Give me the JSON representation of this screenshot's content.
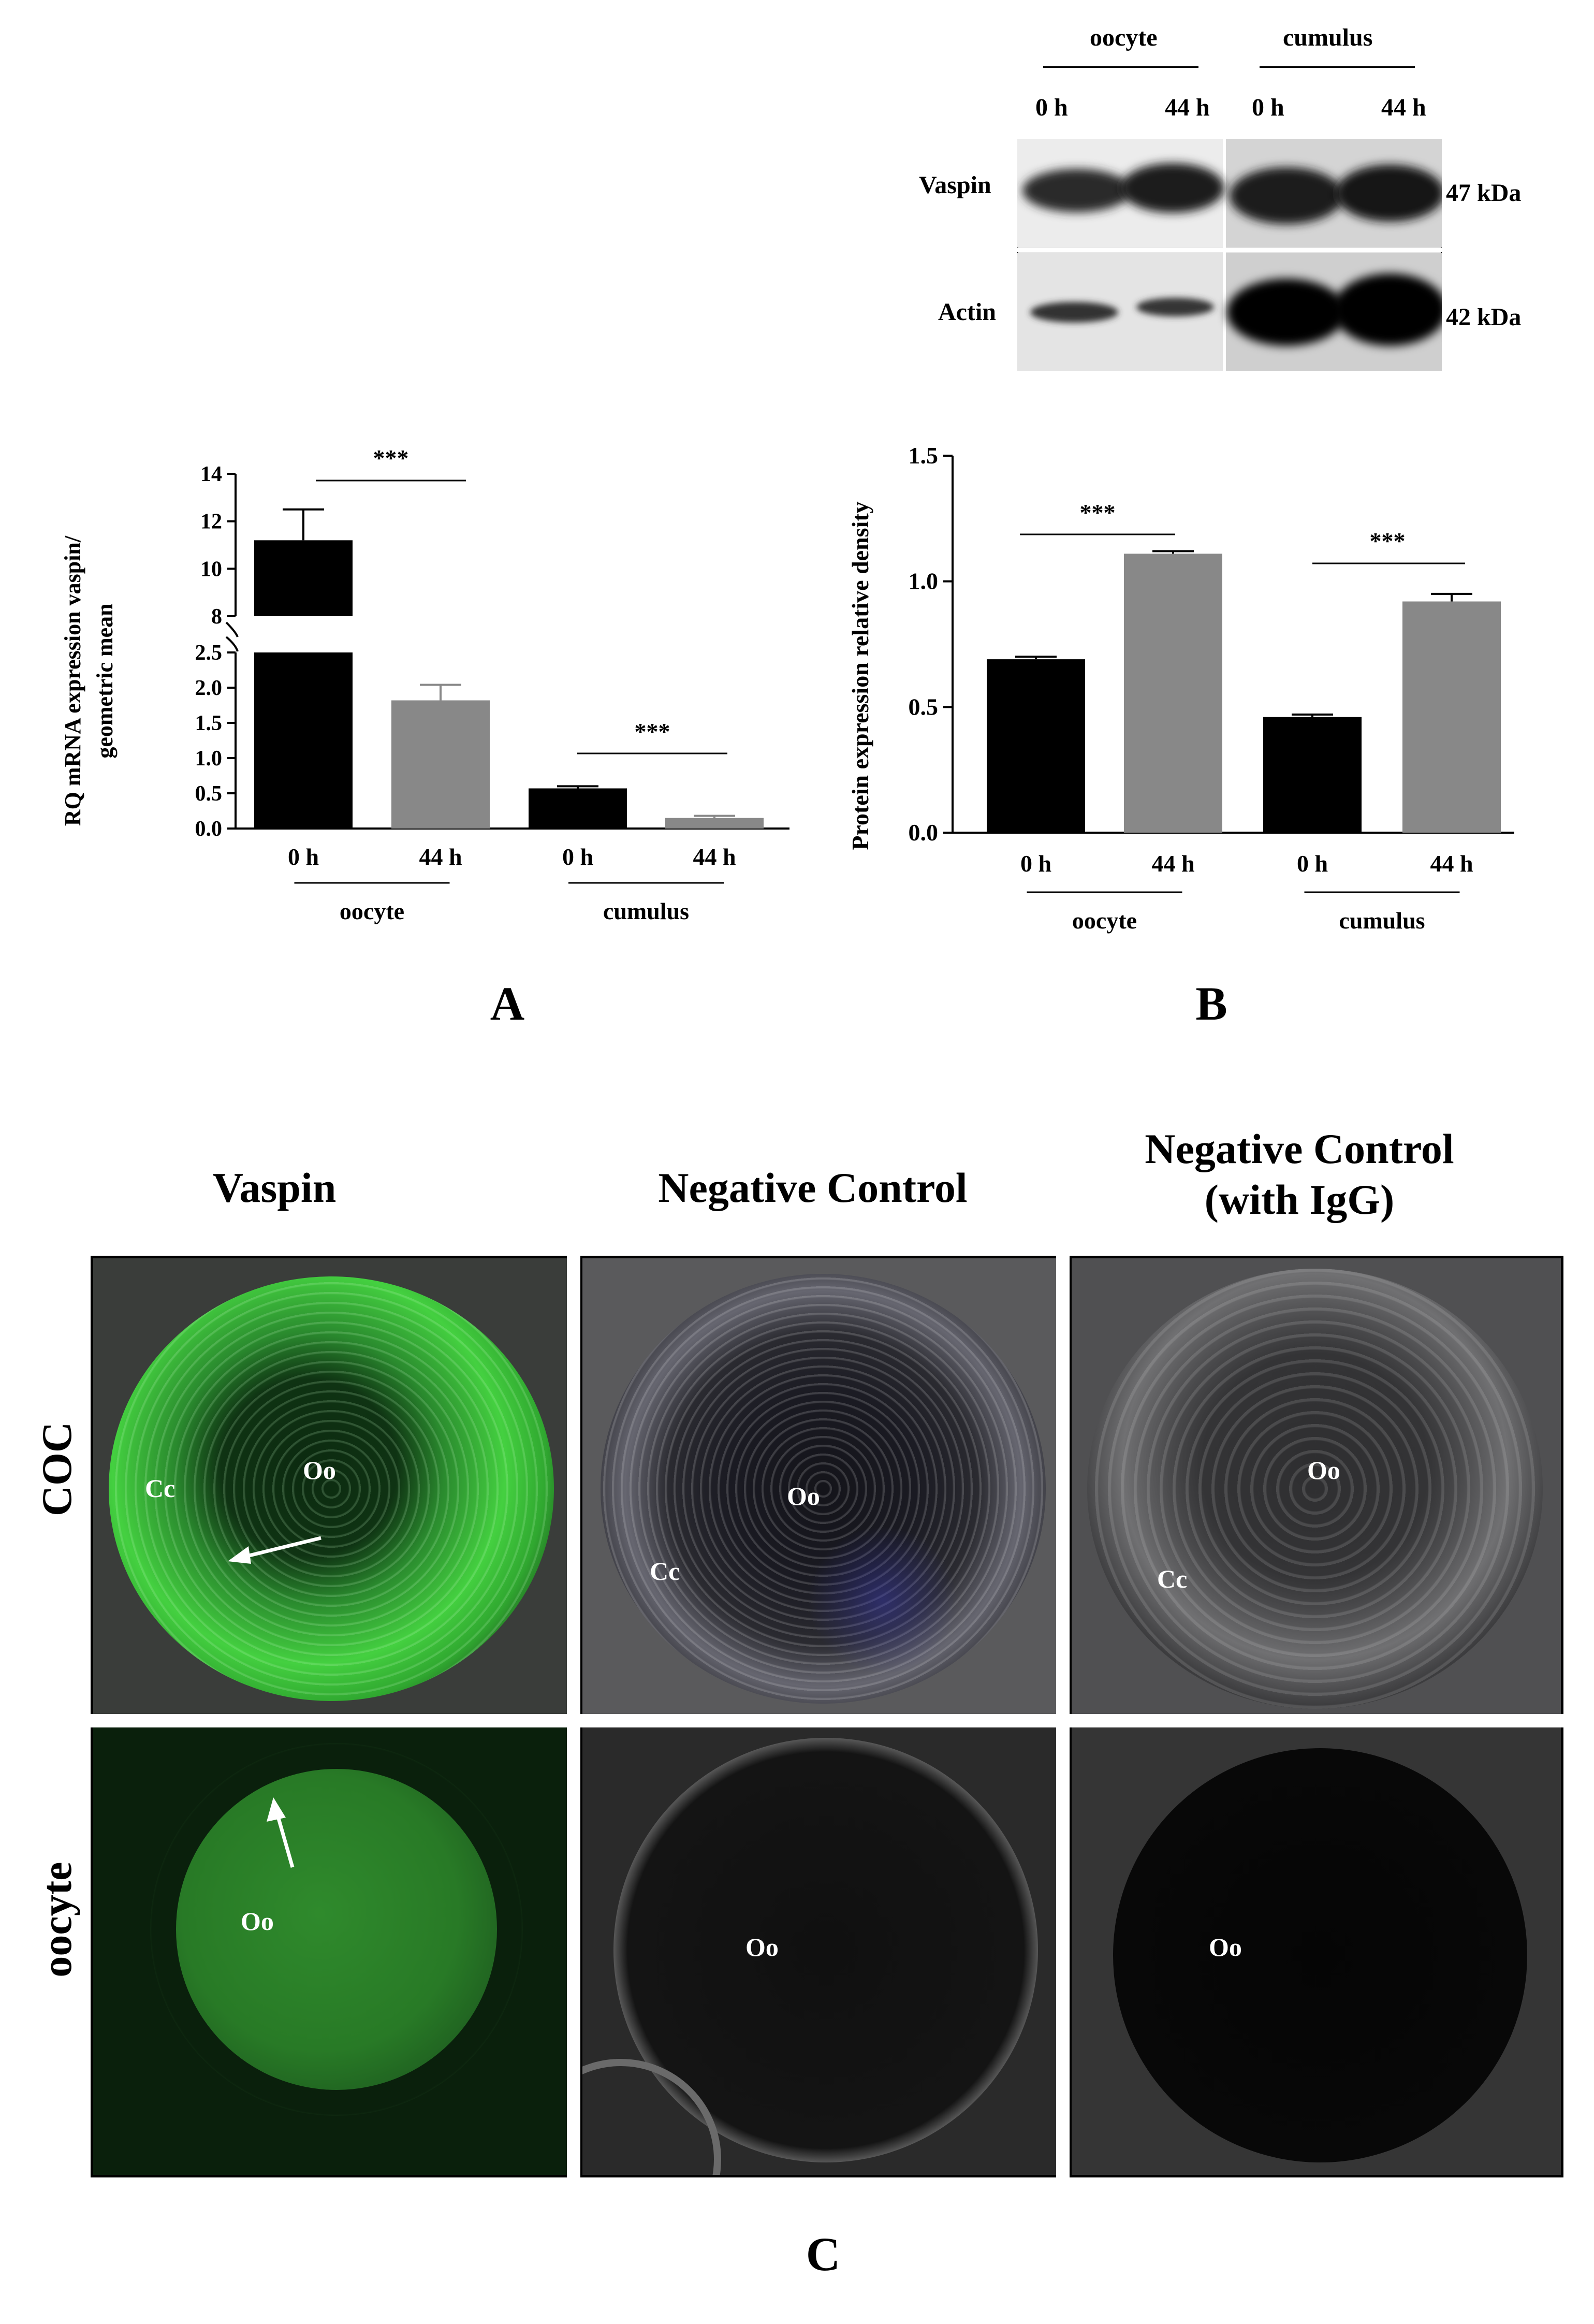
{
  "panel_labels": {
    "a": "A",
    "b": "B",
    "c": "C"
  },
  "panel_a": {
    "ylabel_line1": "RQ mRNA expression vaspin/",
    "ylabel_line2": "geometric mean",
    "significance": [
      "***",
      "***"
    ],
    "groups": [
      "oocyte",
      "cumulus"
    ]
  },
  "panel_b": {
    "ylabel": "Protein expression relative density",
    "significance": [
      "***",
      "***"
    ],
    "groups": [
      "oocyte",
      "cumulus"
    ]
  },
  "western_blot": {
    "groups": [
      "oocyte",
      "cumulus"
    ],
    "lanes": [
      "0 h",
      "44 h",
      "0 h",
      "44 h"
    ],
    "rows": [
      {
        "protein": "Vaspin",
        "size": "47 kDa"
      },
      {
        "protein": "Actin",
        "size": "42 kDa"
      }
    ]
  },
  "panel_c": {
    "col_headers": [
      "Vaspin",
      "Negative Control",
      "Negative Control",
      "(with IgG)"
    ],
    "row_labels": [
      "COC",
      "oocyte"
    ],
    "cell_labels": {
      "oo": "Oo",
      "cc": "Cc"
    }
  },
  "chart_data": [
    {
      "type": "bar",
      "panel": "A",
      "categories": [
        "0 h",
        "44 h",
        "0 h",
        "44 h"
      ],
      "category_groups": [
        "oocyte",
        "oocyte",
        "cumulus",
        "cumulus"
      ],
      "values": [
        11.2,
        1.82,
        0.57,
        0.15
      ],
      "errors": [
        1.3,
        0.22,
        0.03,
        0.03
      ],
      "bar_colors": [
        "#000000",
        "#888888",
        "#000000",
        "#888888"
      ],
      "y_axis_break": {
        "lower_range": [
          0,
          2.5
        ],
        "upper_range": [
          8,
          14
        ]
      },
      "lower_ticks": [
        "0.0",
        "0.5",
        "1.0",
        "1.5",
        "2.0",
        "2.5"
      ],
      "upper_ticks": [
        "8",
        "10",
        "12",
        "14"
      ],
      "ylabel": "RQ mRNA expression vaspin/ geometric mean",
      "significance": [
        {
          "between": [
            0,
            1
          ],
          "label": "***"
        },
        {
          "between": [
            2,
            3
          ],
          "label": "***"
        }
      ]
    },
    {
      "type": "bar",
      "panel": "B",
      "categories": [
        "0 h",
        "44 h",
        "0 h",
        "44 h"
      ],
      "category_groups": [
        "oocyte",
        "oocyte",
        "cumulus",
        "cumulus"
      ],
      "values": [
        0.69,
        1.11,
        0.46,
        0.92
      ],
      "errors": [
        0.01,
        0.01,
        0.01,
        0.03
      ],
      "bar_colors": [
        "#000000",
        "#888888",
        "#000000",
        "#888888"
      ],
      "ylim": [
        0,
        1.5
      ],
      "ticks": [
        "0.0",
        "0.5",
        "1.0",
        "1.5"
      ],
      "ylabel": "Protein expression relative density",
      "significance": [
        {
          "between": [
            0,
            1
          ],
          "label": "***"
        },
        {
          "between": [
            2,
            3
          ],
          "label": "***"
        }
      ]
    }
  ]
}
